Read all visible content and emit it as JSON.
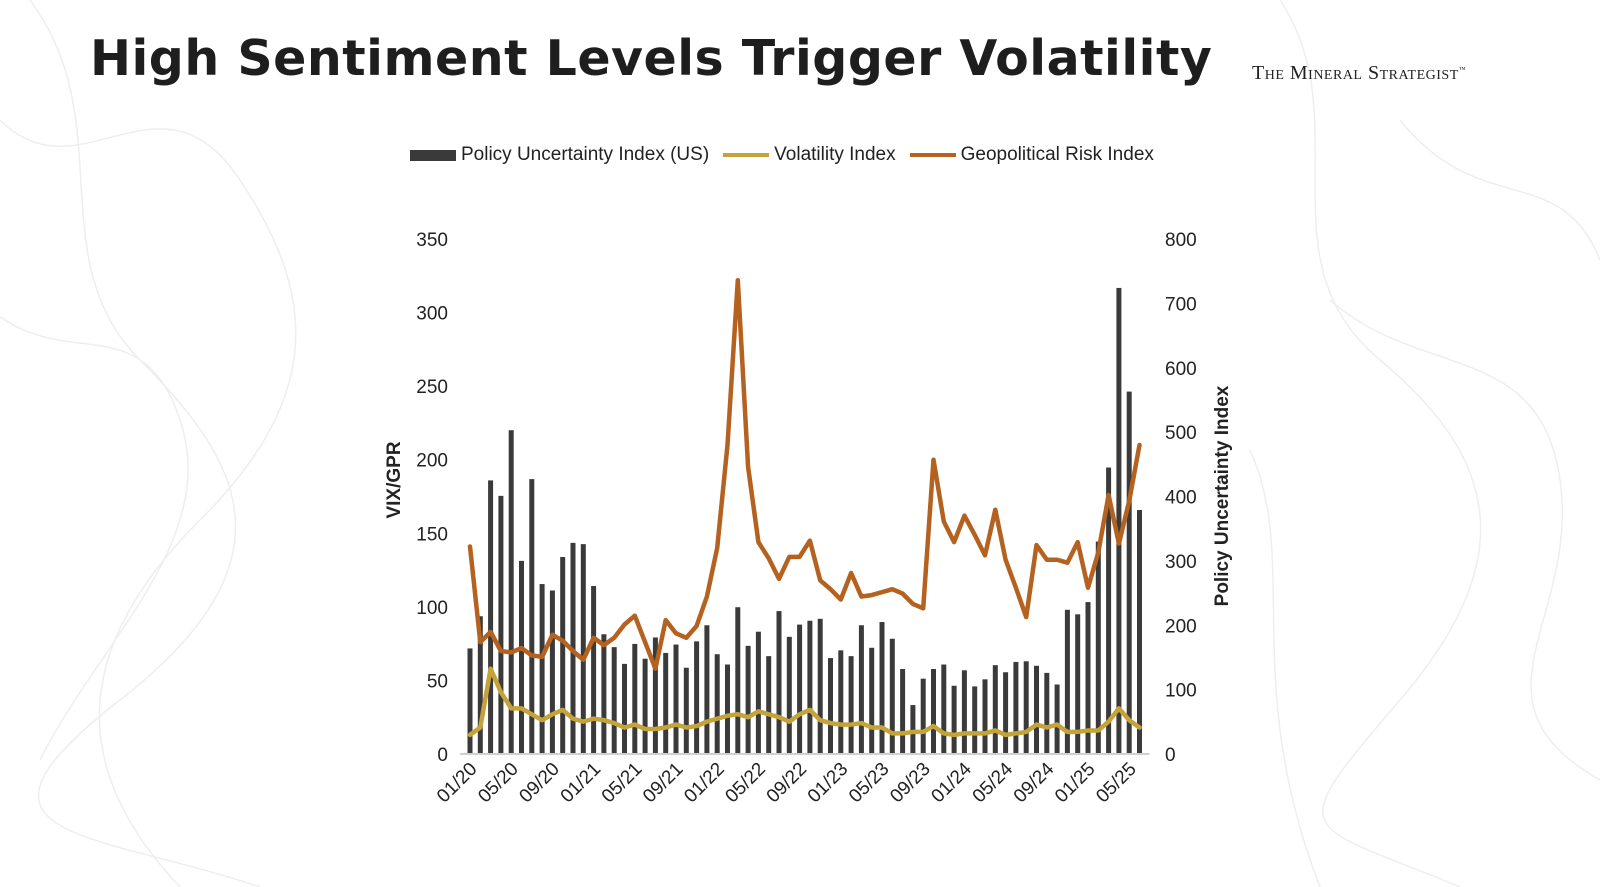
{
  "title": "High Sentiment Levels Trigger Volatility",
  "brand": "The Mineral Strategist",
  "brand_tm": "™",
  "chart_data": {
    "type": "bar+line",
    "title": "High Sentiment Levels Trigger Volatility",
    "legend_position": "top",
    "ylabel_left": "VIX/GPR",
    "ylabel_right": "Policy Uncertainty Index",
    "ylim_left": [
      0,
      350
    ],
    "ylim_right": [
      0,
      800
    ],
    "yticks_left": [
      0,
      50,
      100,
      150,
      200,
      250,
      300,
      350
    ],
    "yticks_right": [
      0,
      100,
      200,
      300,
      400,
      500,
      600,
      700,
      800
    ],
    "grid": false,
    "x_start": "01/20",
    "x_tick_labels": [
      "01/20",
      "05/20",
      "09/20",
      "01/21",
      "05/21",
      "09/21",
      "01/22",
      "05/22",
      "09/22",
      "01/23",
      "05/23",
      "09/23",
      "01/24",
      "05/24",
      "09/24",
      "01/25",
      "05/25"
    ],
    "x_tick_every": 4,
    "series": [
      {
        "name": "Policy Uncertainty Index (US)",
        "type": "bar",
        "axis": "right",
        "color": "#3a3a3a",
        "values": [
          164,
          214,
          425,
          401,
          503,
          300,
          427,
          264,
          254,
          306,
          328,
          326,
          261,
          186,
          166,
          140,
          171,
          148,
          181,
          157,
          170,
          134,
          175,
          200,
          155,
          139,
          228,
          168,
          190,
          152,
          222,
          182,
          201,
          207,
          210,
          149,
          161,
          152,
          200,
          165,
          205,
          179,
          132,
          76,
          117,
          132,
          139,
          106,
          130,
          105,
          116,
          138,
          127,
          143,
          144,
          137,
          126,
          108,
          224,
          217,
          236,
          330,
          445,
          724,
          563,
          379
        ]
      },
      {
        "name": "Volatility Index",
        "type": "line",
        "axis": "left",
        "color": "#c4a43a",
        "values": [
          13,
          18,
          58,
          42,
          31,
          31,
          27,
          23,
          27,
          30,
          24,
          22,
          24,
          23,
          21,
          18,
          20,
          17,
          17,
          18,
          20,
          18,
          19,
          22,
          24,
          26,
          27,
          25,
          29,
          27,
          25,
          22,
          27,
          30,
          23,
          21,
          20,
          20,
          21,
          18,
          18,
          14,
          14,
          15,
          15,
          19,
          14,
          13,
          14,
          14,
          14,
          16,
          13,
          14,
          15,
          20,
          18,
          20,
          15,
          15,
          16,
          16,
          22,
          31,
          23,
          18
        ]
      },
      {
        "name": "Geopolitical Risk Index",
        "type": "line",
        "axis": "left",
        "color": "#b5611f",
        "values": [
          141,
          76,
          83,
          70,
          69,
          72,
          67,
          66,
          81,
          77,
          70,
          64,
          79,
          74,
          79,
          88,
          94,
          76,
          58,
          91,
          82,
          79,
          87,
          107,
          140,
          210,
          322,
          195,
          144,
          133,
          119,
          134,
          134,
          145,
          118,
          112,
          105,
          123,
          107,
          108,
          110,
          112,
          109,
          102,
          99,
          200,
          158,
          144,
          162,
          149,
          135,
          166,
          132,
          113,
          93,
          142,
          132,
          132,
          130,
          144,
          113,
          137,
          176,
          143,
          172,
          210
        ]
      }
    ]
  }
}
